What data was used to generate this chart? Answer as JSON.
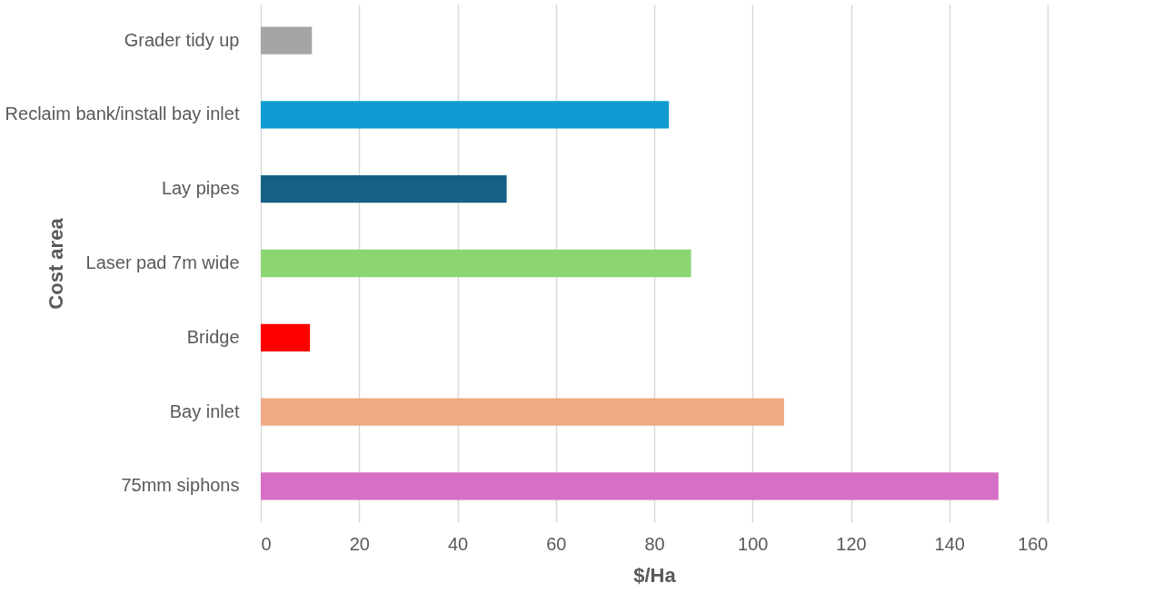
{
  "chart_data": {
    "type": "bar",
    "orientation": "horizontal",
    "xlabel": "$/Ha",
    "ylabel": "Cost area",
    "categories": [
      "Grader tidy up",
      "Reclaim bank/install bay inlet",
      "Lay pipes",
      "Laser pad 7m wide",
      "Bridge",
      "Bay inlet",
      "75mm siphons"
    ],
    "values": [
      10.4,
      83,
      50,
      87.5,
      10,
      106.4,
      150
    ],
    "colors": [
      "#a5a5a5",
      "#119bd2",
      "#166083",
      "#8cd672",
      "#ff0000",
      "#efaa84",
      "#d66fc6"
    ],
    "xlim": [
      0,
      160
    ],
    "xticks": [
      0,
      20,
      40,
      60,
      80,
      100,
      120,
      140,
      160
    ],
    "grid": "x"
  }
}
